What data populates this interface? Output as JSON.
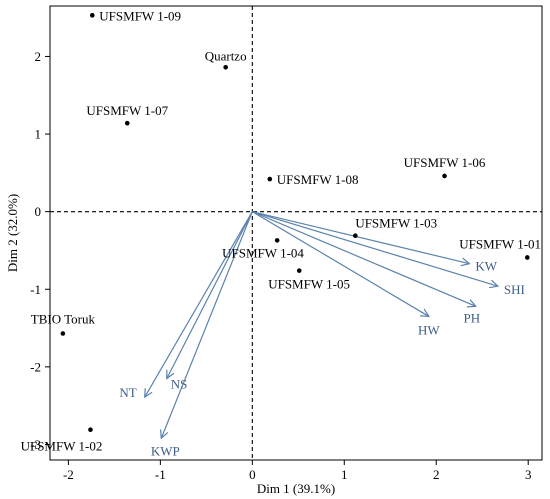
{
  "chart_data": {
    "type": "scatter",
    "subtype": "pca-biplot",
    "title": "",
    "xlabel": "Dim 1 (39.1%)",
    "ylabel": "Dim 2 (32.0%)",
    "xlim": [
      -2.2,
      3.15
    ],
    "ylim": [
      -3.2,
      2.65
    ],
    "xticks": [
      -2,
      -1,
      0,
      1,
      2,
      3
    ],
    "yticks": [
      -3,
      -2,
      -1,
      0,
      1,
      2
    ],
    "grid": false,
    "reference_lines": {
      "x": 0,
      "y": 0,
      "style": "dashed"
    },
    "point_color": "#000000",
    "vector_color": "#5b82ad",
    "vector_label_color": "#3f5f86",
    "points": [
      {
        "label": "UFSMFW 1-09",
        "x": -1.74,
        "y": 2.53
      },
      {
        "label": "Quartzo",
        "x": -0.29,
        "y": 1.86
      },
      {
        "label": "UFSMFW 1-07",
        "x": -1.36,
        "y": 1.14
      },
      {
        "label": "UFSMFW 1-08",
        "x": 0.19,
        "y": 0.42
      },
      {
        "label": "UFSMFW 1-06",
        "x": 2.09,
        "y": 0.46
      },
      {
        "label": "UFSMFW 1-03",
        "x": 1.12,
        "y": -0.31
      },
      {
        "label": "UFSMFW 1-04",
        "x": 0.27,
        "y": -0.37
      },
      {
        "label": "UFSMFW 1-01",
        "x": 2.99,
        "y": -0.59
      },
      {
        "label": "UFSMFW 1-05",
        "x": 0.51,
        "y": -0.76
      },
      {
        "label": "TBIO Toruk",
        "x": -2.06,
        "y": -1.57
      },
      {
        "label": "UFSMFW 1-02",
        "x": -1.76,
        "y": -2.81
      }
    ],
    "vectors": [
      {
        "label": "KW",
        "x": 2.36,
        "y": -0.67
      },
      {
        "label": "SHI",
        "x": 2.67,
        "y": -0.96
      },
      {
        "label": "PH",
        "x": 2.43,
        "y": -1.22
      },
      {
        "label": "HW",
        "x": 1.92,
        "y": -1.35
      },
      {
        "label": "NT",
        "x": -1.17,
        "y": -2.39
      },
      {
        "label": "NS",
        "x": -0.93,
        "y": -2.15
      },
      {
        "label": "KWP",
        "x": -0.99,
        "y": -2.92
      }
    ]
  }
}
